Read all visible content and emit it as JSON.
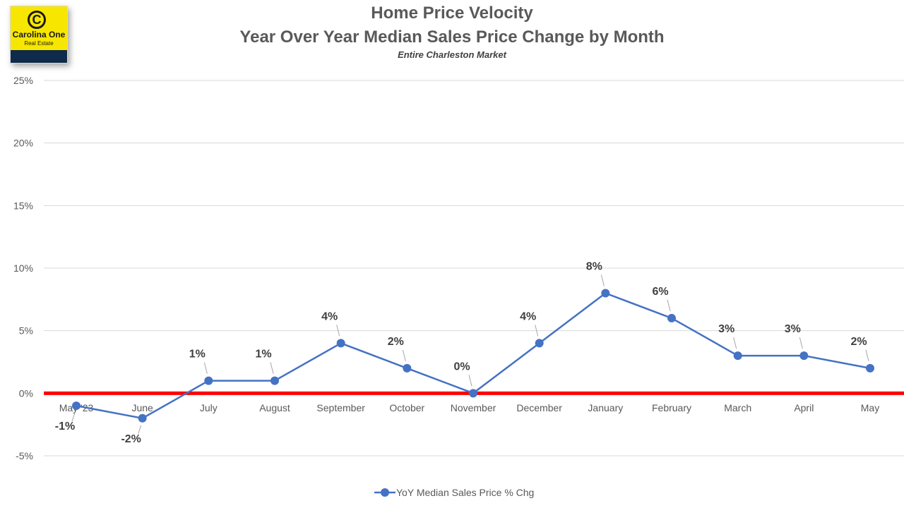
{
  "logo": {
    "mark": "C",
    "name": "Carolina One",
    "sub": "Real Estate"
  },
  "chart_data": {
    "type": "line",
    "title": [
      "Home Price Velocity",
      "Year Over Year Median Sales Price Change by Month"
    ],
    "subtitle": "Entire Charleston Market",
    "xlabel": "",
    "ylabel": "",
    "categories": [
      "May '23",
      "June",
      "July",
      "August",
      "September",
      "October",
      "November",
      "December",
      "January",
      "February",
      "March",
      "April",
      "May"
    ],
    "series": [
      {
        "name": "YoY Median Sales Price % Chg",
        "color": "#4472c4",
        "values": [
          -1,
          -2,
          1,
          1,
          4,
          2,
          0,
          4,
          8,
          6,
          3,
          3,
          2
        ],
        "labels": [
          "-1%",
          "-2%",
          "1%",
          "1%",
          "4%",
          "2%",
          "0%",
          "4%",
          "8%",
          "6%",
          "3%",
          "3%",
          "2%"
        ]
      }
    ],
    "ylim": [
      -5,
      25
    ],
    "yticks": [
      25,
      20,
      15,
      10,
      5,
      0,
      -5
    ],
    "ytick_labels": [
      "25%",
      "20%",
      "15%",
      "10%",
      "5%",
      "0%",
      "-5%"
    ],
    "reference_line": {
      "value": 0,
      "color": "#ff0000"
    },
    "grid": true,
    "legend": "bottom-center"
  }
}
